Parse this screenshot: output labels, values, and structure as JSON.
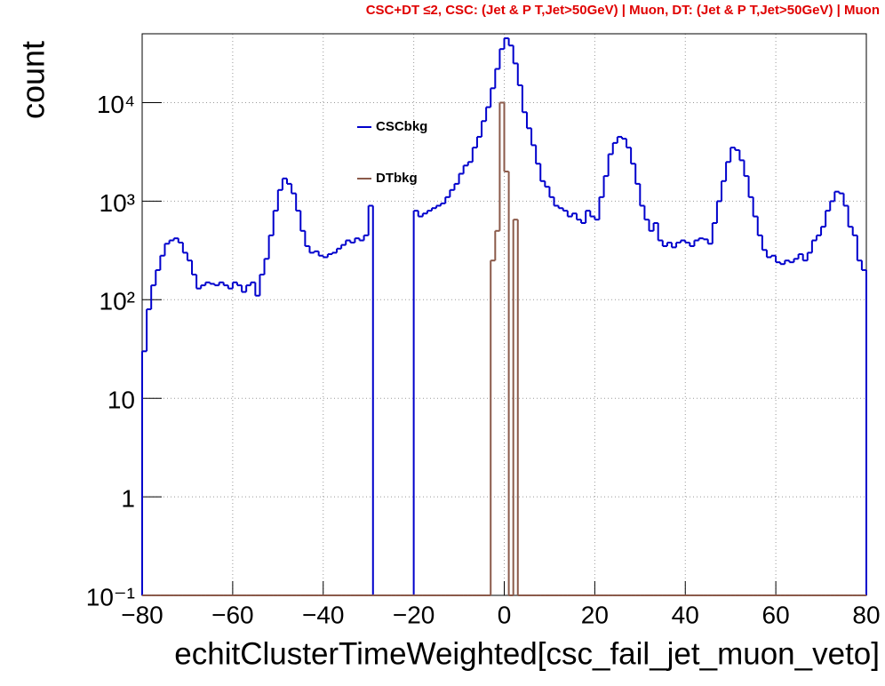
{
  "chart_data": {
    "type": "histogram",
    "title": "CSC+DT ≤2, CSC: (Jet & P T,Jet>50GeV) | Muon, DT: (Jet & P T,Jet>50GeV) | Muon",
    "xlabel": "echitClusterTimeWeighted[csc_fail_jet_muon_veto]",
    "ylabel": "count",
    "log_y": true,
    "grid": true,
    "legend": "upper center",
    "xlim": [
      -80,
      80
    ],
    "xticks": [
      {
        "value": -80,
        "label": "−80"
      },
      {
        "value": -60,
        "label": "−60"
      },
      {
        "value": -40,
        "label": "−40"
      },
      {
        "value": -20,
        "label": "−20"
      },
      0,
      20,
      40,
      60,
      80
    ],
    "ylim": [
      0.1,
      50000
    ],
    "yticks": [
      {
        "value": 0.1,
        "label": "10⁻¹"
      },
      1,
      10,
      {
        "value": 100,
        "label": "10²"
      },
      {
        "value": 1000,
        "label": "10³"
      },
      {
        "value": 10000,
        "label": "10⁴"
      }
    ],
    "bins": [
      -80,
      -79,
      -78,
      -77,
      -76,
      -75,
      -74,
      -73,
      -72,
      -71,
      -70,
      -69,
      -68,
      -67,
      -66,
      -65,
      -64,
      -63,
      -62,
      -61,
      -60,
      -59,
      -58,
      -57,
      -56,
      -55,
      -54,
      -53,
      -52,
      -51,
      -50,
      -49,
      -48,
      -47,
      -46,
      -45,
      -44,
      -43,
      -42,
      -41,
      -40,
      -39,
      -38,
      -37,
      -36,
      -35,
      -34,
      -33,
      -32,
      -31,
      -30,
      -29,
      -28,
      -27,
      -26,
      -25,
      -24,
      -23,
      -22,
      -21,
      -20,
      -19,
      -18,
      -17,
      -16,
      -15,
      -14,
      -13,
      -12,
      -11,
      -10,
      -9,
      -8,
      -7,
      -6,
      -5,
      -4,
      -3,
      -2,
      -1,
      0,
      1,
      2,
      3,
      4,
      5,
      6,
      7,
      8,
      9,
      10,
      11,
      12,
      13,
      14,
      15,
      16,
      17,
      18,
      19,
      20,
      21,
      22,
      23,
      24,
      25,
      26,
      27,
      28,
      29,
      30,
      31,
      32,
      33,
      34,
      35,
      36,
      37,
      38,
      39,
      40,
      41,
      42,
      43,
      44,
      45,
      46,
      47,
      48,
      49,
      50,
      51,
      52,
      53,
      54,
      55,
      56,
      57,
      58,
      59,
      60,
      61,
      62,
      63,
      64,
      65,
      66,
      67,
      68,
      69,
      70,
      71,
      72,
      73,
      74,
      75,
      76,
      77,
      78,
      79,
      80
    ],
    "series": [
      {
        "name": "CSCbkg",
        "color": "#0000cc",
        "values": [
          30,
          80,
          140,
          200,
          280,
          370,
          400,
          420,
          380,
          300,
          250,
          180,
          130,
          140,
          150,
          145,
          140,
          150,
          140,
          130,
          150,
          140,
          120,
          140,
          150,
          110,
          180,
          260,
          450,
          800,
          1300,
          1700,
          1500,
          1200,
          800,
          500,
          350,
          300,
          310,
          280,
          270,
          290,
          300,
          330,
          360,
          400,
          380,
          420,
          400,
          450,
          900,
          null,
          null,
          null,
          null,
          null,
          null,
          null,
          null,
          null,
          800,
          700,
          750,
          800,
          850,
          900,
          950,
          1100,
          1300,
          1500,
          1900,
          2300,
          2500,
          3500,
          4500,
          6500,
          9000,
          14000,
          22000,
          35000,
          45000,
          38000,
          25000,
          15000,
          8000,
          5500,
          3700,
          2400,
          1600,
          1400,
          1100,
          900,
          850,
          800,
          700,
          750,
          650,
          600,
          800,
          700,
          650,
          1100,
          1800,
          3000,
          3900,
          4500,
          4300,
          3500,
          2400,
          1500,
          900,
          650,
          500,
          600,
          400,
          350,
          380,
          340,
          380,
          400,
          380,
          350,
          400,
          420,
          410,
          370,
          600,
          1000,
          1600,
          2500,
          3500,
          3300,
          2600,
          1800,
          1100,
          700,
          450,
          320,
          270,
          280,
          240,
          230,
          250,
          240,
          260,
          290,
          250,
          300,
          400,
          450,
          550,
          800,
          1000,
          1250,
          1200,
          900,
          550,
          450,
          250,
          200
        ]
      },
      {
        "name": "DTbkg",
        "color": "#8b5a4a",
        "values": [
          0,
          0,
          0,
          0,
          0,
          0,
          0,
          0,
          0,
          0,
          0,
          0,
          0,
          0,
          0,
          0,
          0,
          0,
          0,
          0,
          0,
          0,
          0,
          0,
          0,
          0,
          0,
          0,
          0,
          0,
          0,
          0,
          0,
          0,
          0,
          0,
          0,
          0,
          0,
          0,
          0,
          0,
          0,
          0,
          0,
          0,
          0,
          0,
          0,
          0,
          0,
          0,
          0,
          0,
          0,
          0,
          0,
          0,
          0,
          0,
          0,
          0,
          0,
          0,
          0,
          0,
          0,
          0,
          0,
          0,
          0,
          0,
          0,
          0,
          0,
          0,
          0,
          250,
          500,
          10000,
          2000,
          0,
          650,
          0,
          0,
          0,
          0,
          0,
          0,
          0,
          0,
          0,
          0,
          0,
          0,
          0,
          0,
          0,
          0,
          0,
          0,
          0,
          0,
          0,
          0,
          0,
          0,
          0,
          0,
          0,
          0,
          0,
          0,
          0,
          0,
          0,
          0,
          0,
          0,
          0,
          0,
          0,
          0,
          0,
          0,
          0,
          0,
          0,
          0,
          0,
          0,
          0,
          0,
          0,
          0,
          0,
          0,
          0,
          0,
          0,
          0,
          0,
          0,
          0,
          0,
          0,
          0,
          0,
          0,
          0,
          0,
          0,
          0,
          0,
          0,
          0,
          0,
          0,
          0,
          0
        ]
      }
    ]
  }
}
